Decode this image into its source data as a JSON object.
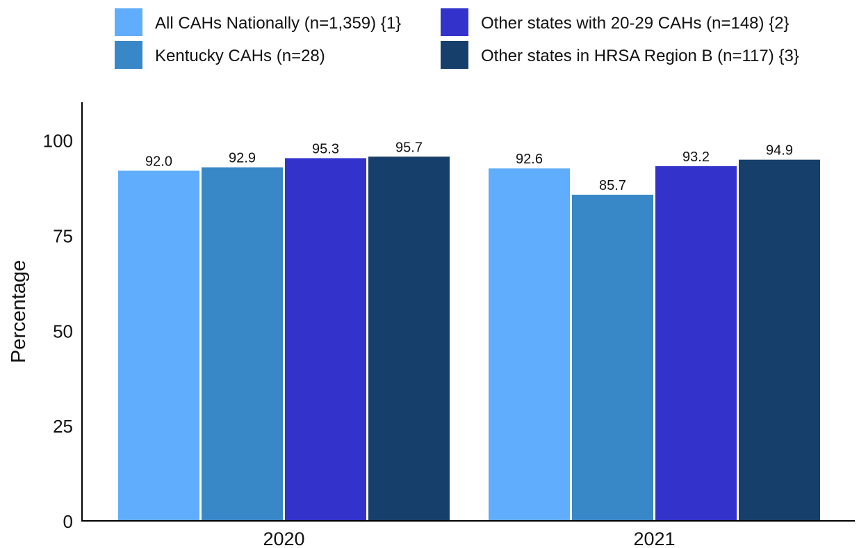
{
  "chart_data": {
    "type": "bar",
    "categories": [
      "2020",
      "2021"
    ],
    "series": [
      {
        "name": "All CAHs Nationally (n=1,359) {1}",
        "color": "#5fadfc",
        "values": [
          92.0,
          92.6
        ]
      },
      {
        "name": "Kentucky CAHs (n=28)",
        "color": "#3887c6",
        "values": [
          92.9,
          85.7
        ]
      },
      {
        "name": "Other states with 20-29 CAHs (n=148) {2}",
        "color": "#3333cc",
        "values": [
          95.3,
          93.2
        ]
      },
      {
        "name": "Other states in HRSA Region B (n=117) {3}",
        "color": "#173f6b",
        "values": [
          95.7,
          94.9
        ]
      }
    ],
    "value_labels": [
      [
        "92.0",
        "92.6"
      ],
      [
        "92.9",
        "85.7"
      ],
      [
        "95.3",
        "93.2"
      ],
      [
        "95.7",
        "94.9"
      ]
    ],
    "ylabel": "Percentage",
    "xlabel": "",
    "ylim": [
      0,
      110
    ],
    "yticks": [
      0,
      25,
      50,
      75,
      100
    ],
    "ytick_labels": [
      "0",
      "25",
      "50",
      "75",
      "100"
    ],
    "grid": false,
    "legend_position": "top"
  }
}
